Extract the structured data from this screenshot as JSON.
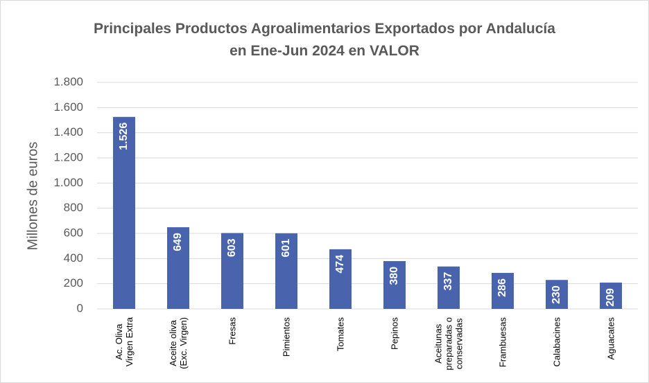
{
  "chart_data": {
    "type": "bar",
    "title": "Principales Productos Agroalimentarios Exportados por Andalucía\nen Ene-Jun 2024 en VALOR",
    "y_label": "Millones de euros",
    "categories": [
      "Ac. Oliva\nVirgen Extra",
      "Aceite oliva\n(Exc. Virgen)",
      "Fresas",
      "Pimientos",
      "Tomates",
      "Pepinos",
      "Aceitunas\npreparadas o\nconservadas",
      "Frambuesas",
      "Calabacines",
      "Aguacates"
    ],
    "values": [
      1526,
      649,
      603,
      601,
      474,
      380,
      337,
      286,
      230,
      209
    ],
    "value_labels": [
      "1.526",
      "649",
      "603",
      "601",
      "474",
      "380",
      "337",
      "286",
      "230",
      "209"
    ],
    "color": "#4a63ad",
    "ylim": [
      0,
      1800
    ],
    "yticks": [
      0,
      200,
      400,
      600,
      800,
      {
        "value": 1000,
        "label": "1.000"
      },
      {
        "value": 1200,
        "label": "1.200"
      },
      {
        "value": 1400,
        "label": "1.400"
      },
      {
        "value": 1600,
        "label": "1.600"
      },
      {
        "value": 1800,
        "label": "1.800"
      }
    ],
    "grid": true
  }
}
